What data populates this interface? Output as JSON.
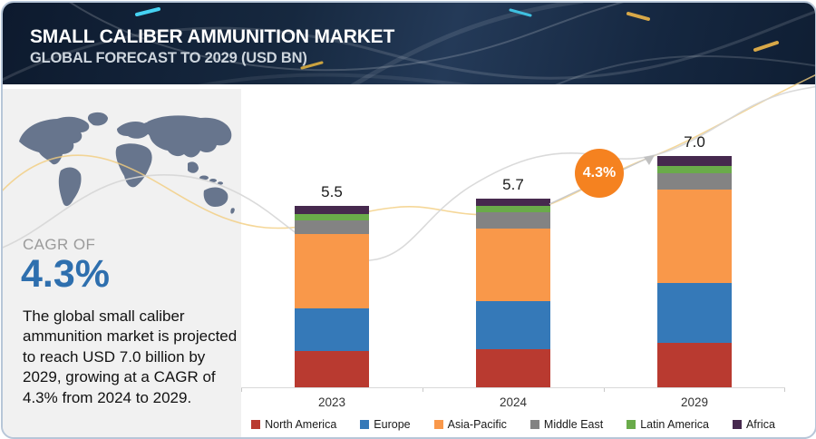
{
  "header": {
    "title": "SMALL CALIBER AMMUNITION MARKET",
    "subtitle": "GLOBAL FORECAST TO 2029 (USD BN)"
  },
  "sidebar": {
    "cagr_label": "CAGR OF",
    "cagr_value": "4.3%",
    "description": "The global small caliber ammunition market is projected to reach USD 7.0 billion by 2029, growing at a CAGR of 4.3% from 2024 to 2029."
  },
  "chart_data": {
    "type": "bar",
    "stacked": true,
    "title": "Small Caliber Ammunition Market, Global Forecast to 2029 (USD BN)",
    "categories": [
      "2023",
      "2024",
      "2029"
    ],
    "totals": [
      5.5,
      5.7,
      7.0
    ],
    "series": [
      {
        "name": "North America",
        "color": "#b93a30",
        "values": [
          1.1,
          1.15,
          1.35
        ]
      },
      {
        "name": "Europe",
        "color": "#3579b8",
        "values": [
          1.3,
          1.45,
          1.8
        ]
      },
      {
        "name": "Asia-Pacific",
        "color": "#f9984a",
        "values": [
          2.25,
          2.2,
          2.85
        ]
      },
      {
        "name": "Middle East",
        "color": "#838383",
        "values": [
          0.4,
          0.5,
          0.5
        ]
      },
      {
        "name": "Latin America",
        "color": "#6aab4a",
        "values": [
          0.2,
          0.2,
          0.2
        ]
      },
      {
        "name": "Africa",
        "color": "#46294e",
        "values": [
          0.25,
          0.2,
          0.3
        ]
      }
    ],
    "annotation": {
      "label": "4.3%",
      "color": "#f58220"
    },
    "xlabel": "",
    "ylabel": "",
    "ylim": [
      0,
      7.7
    ],
    "grid": false,
    "legend_position": "bottom"
  }
}
